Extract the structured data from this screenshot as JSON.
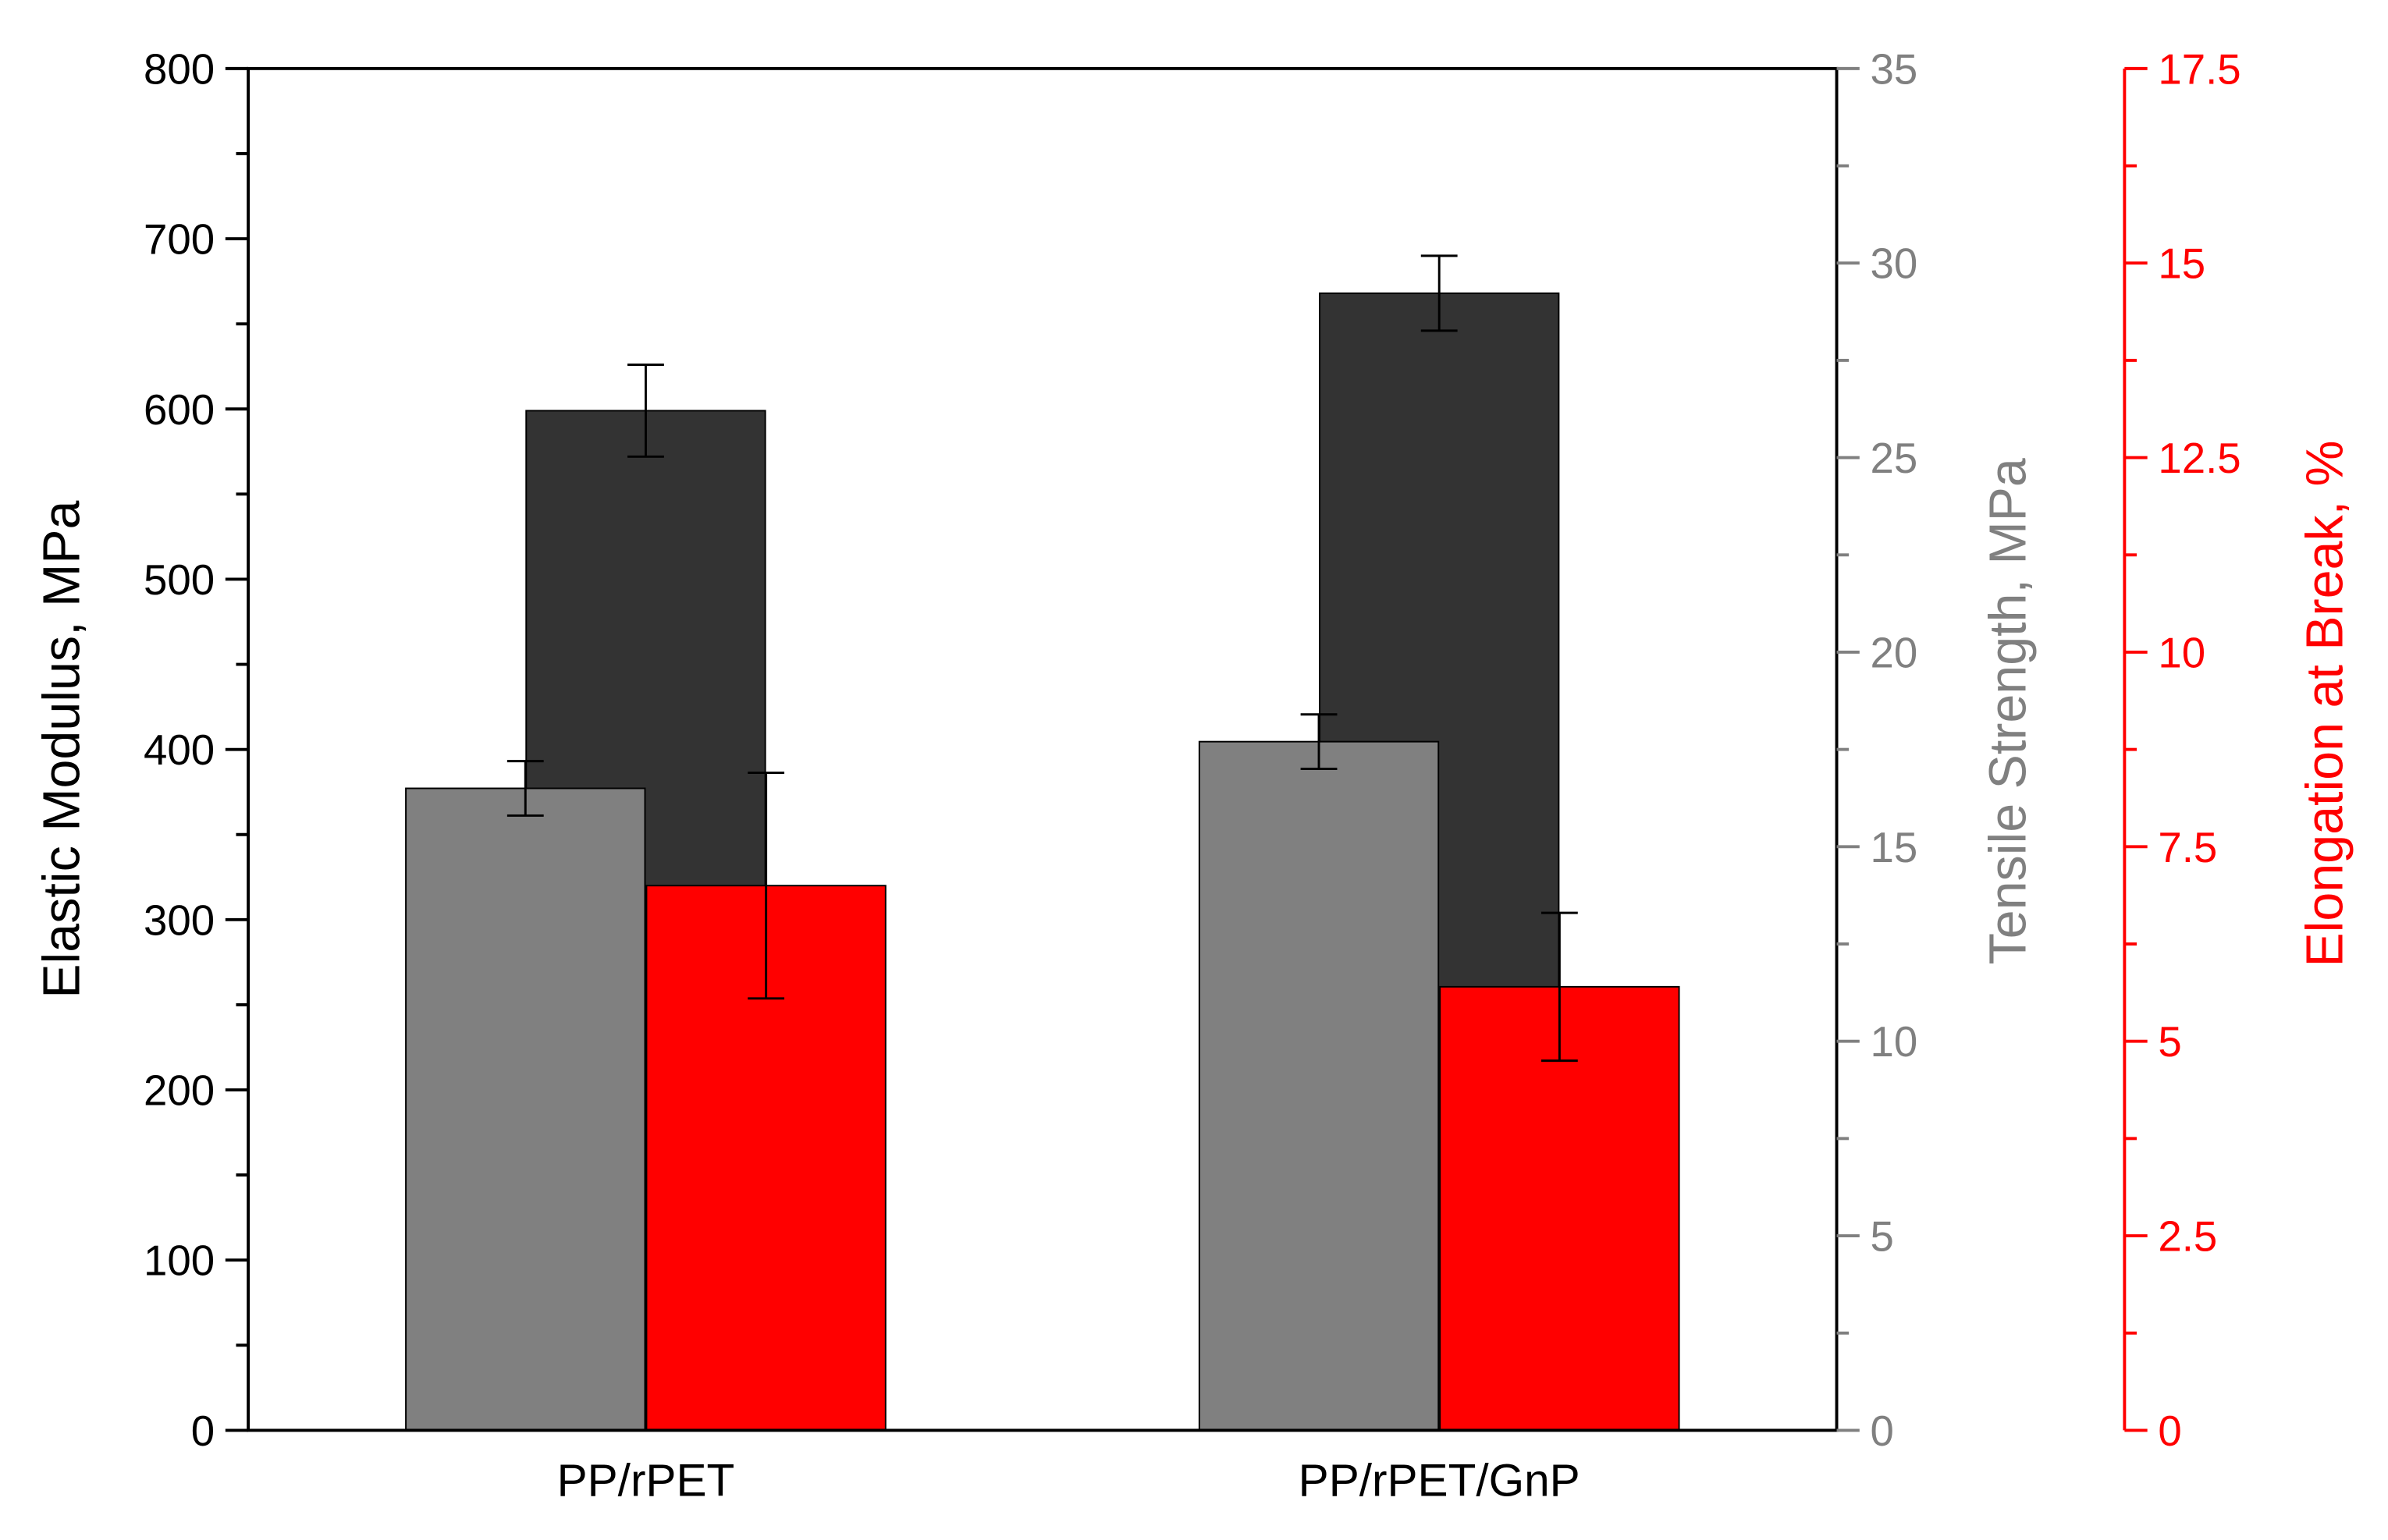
{
  "chart_data": {
    "type": "bar",
    "categories": [
      "PP/rPET",
      "PP/rPET/GnP"
    ],
    "axes": {
      "left": {
        "label": "Elastic Modulus, MPa",
        "ylim": [
          0,
          800
        ],
        "ticks": [
          0,
          100,
          200,
          300,
          400,
          500,
          600,
          700,
          800
        ],
        "tick_labels": [
          "0",
          "100",
          "200",
          "300",
          "400",
          "500",
          "600",
          "700",
          "800"
        ],
        "color": "#000000"
      },
      "right1": {
        "label": "Tensile Strength, MPa",
        "ylim": [
          0,
          35
        ],
        "ticks": [
          0,
          5,
          10,
          15,
          20,
          25,
          30,
          35
        ],
        "tick_labels": [
          "0",
          "5",
          "10",
          "15",
          "20",
          "25",
          "30",
          "35"
        ],
        "color": "#808080"
      },
      "right2": {
        "label": "Elongation at Break, %",
        "ylim": [
          0,
          17.5
        ],
        "ticks": [
          0,
          2.5,
          5,
          7.5,
          10,
          12.5,
          15,
          17.5
        ],
        "tick_labels": [
          "0",
          "2.5",
          "5",
          "7.5",
          "10",
          "12.5",
          "15",
          "17.5"
        ],
        "color": "#ff0000"
      }
    },
    "series": [
      {
        "axis": "left",
        "color": "#333333",
        "values": [
          599,
          668
        ],
        "errors": [
          27,
          22
        ]
      },
      {
        "axis": "right1",
        "color": "#808080",
        "values": [
          16.5,
          17.7
        ],
        "errors": [
          0.7,
          0.7
        ]
      },
      {
        "axis": "right2",
        "color": "#ff0000",
        "values": [
          7.0,
          5.7
        ],
        "errors": [
          1.45,
          0.95
        ]
      }
    ],
    "grid": false,
    "legend": "none"
  }
}
